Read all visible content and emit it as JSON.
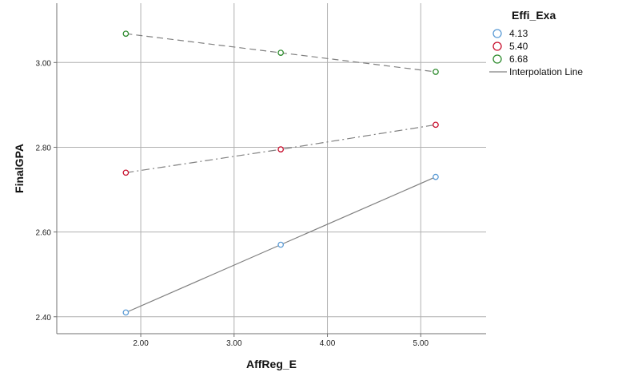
{
  "chart_data": {
    "type": "line",
    "xlabel": "AffReg_E",
    "ylabel": "FinalGPA",
    "x_ticks": [
      "2.00",
      "3.00",
      "4.00",
      "5.00"
    ],
    "y_ticks": [
      "2.40",
      "2.60",
      "2.80",
      "3.00"
    ],
    "xlim": [
      1.1,
      5.7
    ],
    "ylim": [
      2.36,
      3.14
    ],
    "grid": true,
    "legend_position": "top-right",
    "legend_title": "Effi_Exa",
    "interpolation_label": "Interpolation Line",
    "x": [
      1.84,
      3.5,
      5.16
    ],
    "series": [
      {
        "name": "4.13",
        "values": [
          2.41,
          2.57,
          2.73
        ],
        "color": "#5b9bd5",
        "dash": ""
      },
      {
        "name": "5.40",
        "values": [
          2.74,
          2.795,
          2.853
        ],
        "color": "#c8102e",
        "dash": "10 4 2 4"
      },
      {
        "name": "6.68",
        "values": [
          3.068,
          3.023,
          2.978
        ],
        "color": "#2e8b2e",
        "dash": "8 5"
      }
    ],
    "line_color": "#808080",
    "grid_color": "#b0b0b0",
    "axis_color": "#707070"
  }
}
